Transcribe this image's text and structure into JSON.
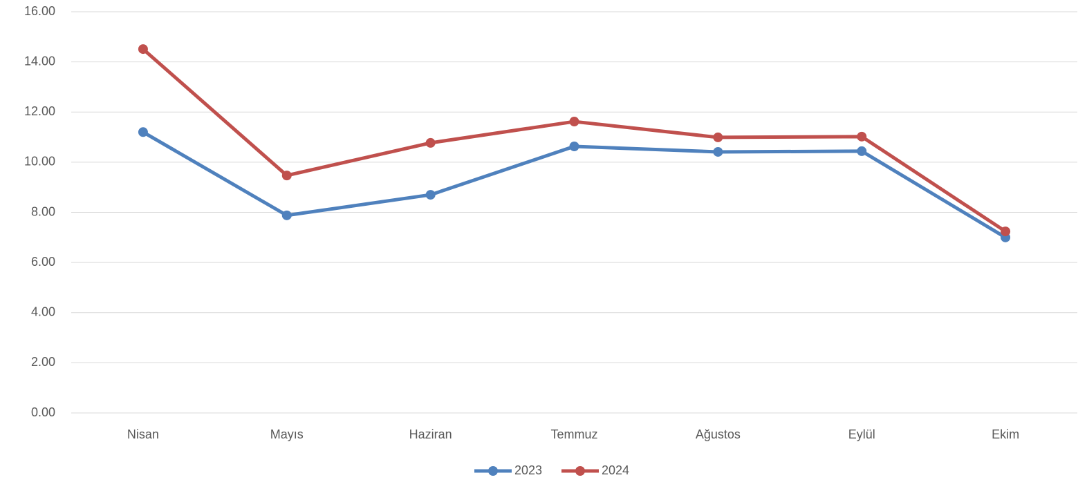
{
  "chart_data": {
    "type": "line",
    "categories": [
      "Nisan",
      "Mayıs",
      "Haziran",
      "Temmuz",
      "Ağustos",
      "Eylül",
      "Ekim"
    ],
    "series": [
      {
        "name": "2023",
        "color": "#4f81bd",
        "values": [
          11.2,
          7.88,
          8.7,
          10.63,
          10.41,
          10.44,
          7.0
        ]
      },
      {
        "name": "2024",
        "color": "#c0504d",
        "values": [
          14.51,
          9.47,
          10.77,
          11.62,
          10.99,
          11.02,
          7.24
        ]
      }
    ],
    "ylim": [
      0,
      16
    ],
    "yticks": [
      {
        "value": 0,
        "label": "0.00"
      },
      {
        "value": 2,
        "label": "2.00"
      },
      {
        "value": 4,
        "label": "4.00"
      },
      {
        "value": 6,
        "label": "6.00"
      },
      {
        "value": 8,
        "label": "8.00"
      },
      {
        "value": 10,
        "label": "10.00"
      },
      {
        "value": 12,
        "label": "12.00"
      },
      {
        "value": 14,
        "label": "14.00"
      },
      {
        "value": 16,
        "label": "16.00"
      }
    ],
    "grid": true,
    "legend": "bottom"
  }
}
